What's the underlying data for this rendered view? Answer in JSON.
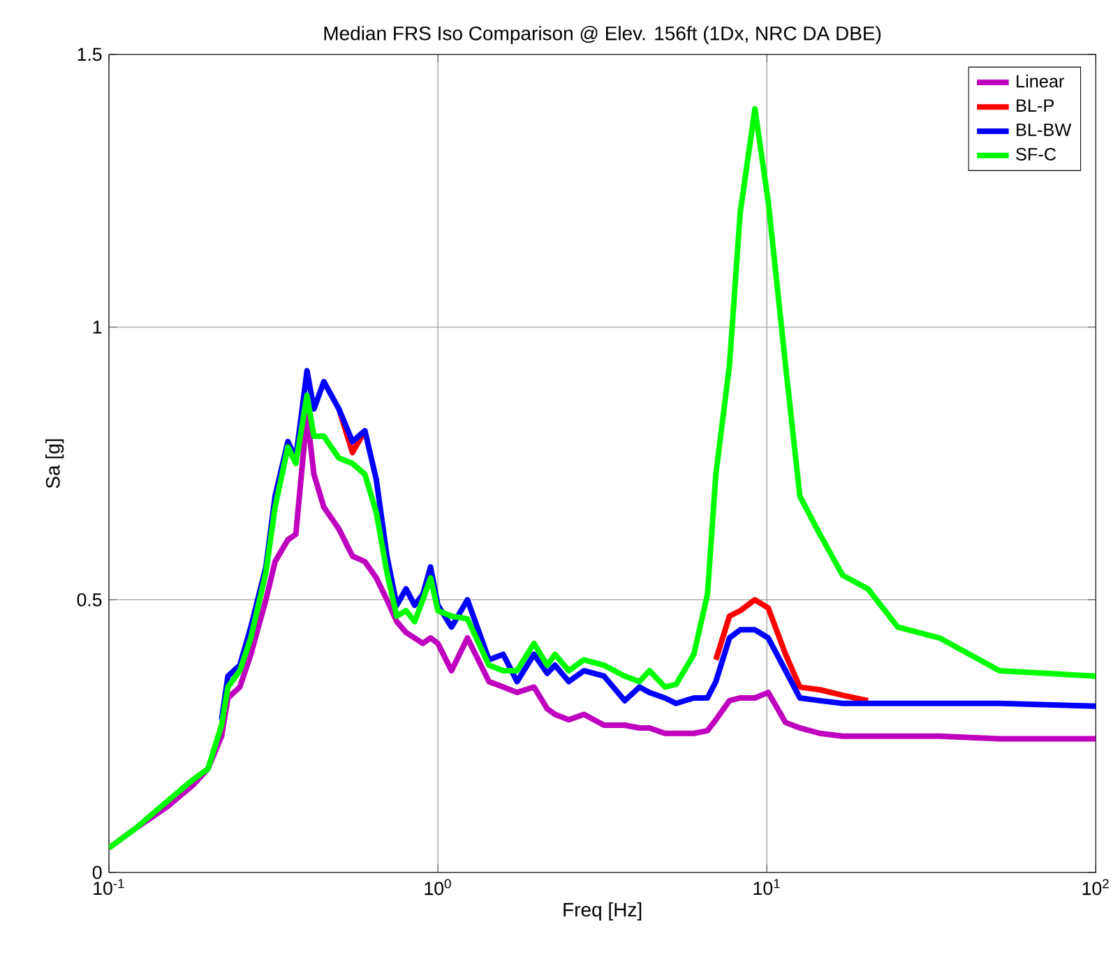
{
  "chart_data": {
    "type": "line",
    "title": "Median FRS Iso Comparison @ Elev. 156ft (1Dx, NRC DA DBE)",
    "xlabel": "Freq [Hz]",
    "ylabel": "Sa [g]",
    "log": "x",
    "grid": true,
    "legend": "top right",
    "xlim": [
      0.1,
      100
    ],
    "ylim": [
      0,
      1.5
    ],
    "xticks": [
      {
        "value": 0.1,
        "label": "10$^{-1}$"
      },
      {
        "value": 1,
        "label": "10$^{0}$"
      },
      {
        "value": 10,
        "label": "10$^{1}$"
      },
      {
        "value": 100,
        "label": "10$^{2}$"
      }
    ],
    "yticks": [
      0,
      0.5,
      1,
      1.5
    ],
    "x": [
      0.1,
      0.12,
      0.15,
      0.18,
      0.2,
      0.22,
      0.23,
      0.25,
      0.27,
      0.3,
      0.32,
      0.35,
      0.37,
      0.4,
      0.42,
      0.45,
      0.5,
      0.55,
      0.6,
      0.65,
      0.7,
      0.75,
      0.8,
      0.85,
      0.9,
      0.95,
      1.0,
      1.1,
      1.23,
      1.43,
      1.58,
      1.74,
      1.96,
      2.15,
      2.27,
      2.5,
      2.78,
      3.2,
      3.7,
      4.1,
      4.4,
      4.9,
      5.3,
      6.0,
      6.6,
      7.0,
      7.7,
      8.3,
      9.2,
      10.1,
      11.4,
      12.6,
      14.5,
      17,
      20.3,
      25,
      33.5,
      51,
      100
    ],
    "series": [
      {
        "name": "Linear",
        "color": "#bf00bf",
        "values": [
          0.045,
          0.08,
          0.12,
          0.16,
          0.19,
          0.25,
          0.32,
          0.34,
          0.4,
          0.5,
          0.57,
          0.61,
          0.62,
          0.84,
          0.73,
          0.67,
          0.63,
          0.58,
          0.57,
          0.54,
          0.5,
          0.46,
          0.44,
          0.43,
          0.42,
          0.43,
          0.42,
          0.37,
          0.43,
          0.35,
          0.34,
          0.33,
          0.34,
          0.3,
          0.29,
          0.28,
          0.29,
          0.27,
          0.27,
          0.265,
          0.265,
          0.255,
          0.255,
          0.255,
          0.26,
          0.28,
          0.315,
          0.32,
          0.32,
          0.33,
          0.275,
          0.265,
          0.255,
          0.25,
          0.25,
          0.25,
          0.25,
          0.245,
          0.245
        ]
      },
      {
        "name": "BL-P",
        "color": "#ff0000",
        "values": [
          null,
          null,
          null,
          null,
          null,
          null,
          null,
          null,
          null,
          null,
          null,
          null,
          null,
          null,
          null,
          null,
          0.85,
          0.77,
          0.81,
          null,
          null,
          null,
          null,
          null,
          null,
          null,
          null,
          null,
          null,
          null,
          null,
          null,
          null,
          null,
          null,
          null,
          null,
          null,
          null,
          null,
          null,
          null,
          null,
          null,
          null,
          0.39,
          0.47,
          0.48,
          0.5,
          0.485,
          0.4,
          0.34,
          0.335,
          0.325,
          0.315,
          null,
          null,
          null,
          null
        ]
      },
      {
        "name": "BL-BW",
        "color": "#0000ff",
        "values": [
          null,
          null,
          null,
          null,
          null,
          0.28,
          0.36,
          0.38,
          0.45,
          0.56,
          0.69,
          0.79,
          0.76,
          0.92,
          0.85,
          0.9,
          0.85,
          0.79,
          0.81,
          0.72,
          0.58,
          0.49,
          0.52,
          0.49,
          0.51,
          0.56,
          0.49,
          0.45,
          0.5,
          0.39,
          0.4,
          0.35,
          0.4,
          0.365,
          0.38,
          0.35,
          0.37,
          0.36,
          0.315,
          0.34,
          0.33,
          0.32,
          0.31,
          0.32,
          0.32,
          0.35,
          0.43,
          0.445,
          0.445,
          0.43,
          0.37,
          0.32,
          0.315,
          0.31,
          0.31,
          0.31,
          0.31,
          0.31,
          0.305
        ]
      },
      {
        "name": "SF-C",
        "color": "#00ff00",
        "values": [
          0.045,
          0.08,
          0.13,
          0.17,
          0.19,
          0.27,
          0.34,
          0.37,
          0.43,
          0.55,
          0.67,
          0.78,
          0.75,
          0.875,
          0.8,
          0.8,
          0.76,
          0.75,
          0.73,
          0.66,
          0.55,
          0.47,
          0.48,
          0.46,
          0.5,
          0.54,
          0.48,
          0.47,
          0.465,
          0.38,
          0.37,
          0.37,
          0.42,
          0.38,
          0.4,
          0.37,
          0.39,
          0.38,
          0.36,
          0.35,
          0.37,
          0.34,
          0.345,
          0.4,
          0.51,
          0.73,
          0.93,
          1.21,
          1.4,
          1.23,
          0.93,
          0.69,
          0.62,
          0.545,
          0.52,
          0.45,
          0.43,
          0.37,
          0.36
        ]
      }
    ]
  }
}
